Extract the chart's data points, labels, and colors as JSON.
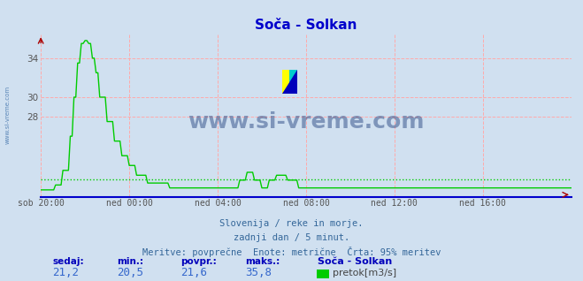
{
  "title": "Soča - Solkan",
  "bg_color": "#d0e0f0",
  "plot_bg_color": "#d0e0f0",
  "line_color": "#00cc00",
  "avg_line_color": "#00cc00",
  "grid_color": "#ffaaaa",
  "watermark_text": "www.si-vreme.com",
  "watermark_color": "#1a3a7a",
  "ylabel_text": "www.si-vreme.com",
  "ylabel_color": "#1a5599",
  "x_tick_labels": [
    "sob 20:00",
    "ned 00:00",
    "ned 04:00",
    "ned 08:00",
    "ned 12:00",
    "ned 16:00"
  ],
  "x_tick_positions": [
    0,
    48,
    96,
    144,
    192,
    240
  ],
  "y_ticks": [
    28,
    30,
    34
  ],
  "y_min": 19.8,
  "y_max": 36.5,
  "avg_value": 21.6,
  "station": "Soča - Solkan",
  "unit": "pretok[m3/s]",
  "subtitle1": "Slovenija / reke in morje.",
  "subtitle2": "zadnji dan / 5 minut.",
  "subtitle3": "Meritve: povprečne  Enote: metrične  Črta: 95% meritev",
  "footer_labels": [
    "sedaj:",
    "min.:",
    "povpr.:",
    "maks.:"
  ],
  "footer_values": [
    "21,2",
    "20,5",
    "21,6",
    "35,8"
  ],
  "title_color": "#0000cc",
  "tick_color": "#555555",
  "spine_bottom_color": "#0000cc",
  "arrow_color": "#aa0000",
  "subtitle_color": "#336699",
  "footer_label_color": "#0000bb",
  "footer_val_color": "#3366cc"
}
